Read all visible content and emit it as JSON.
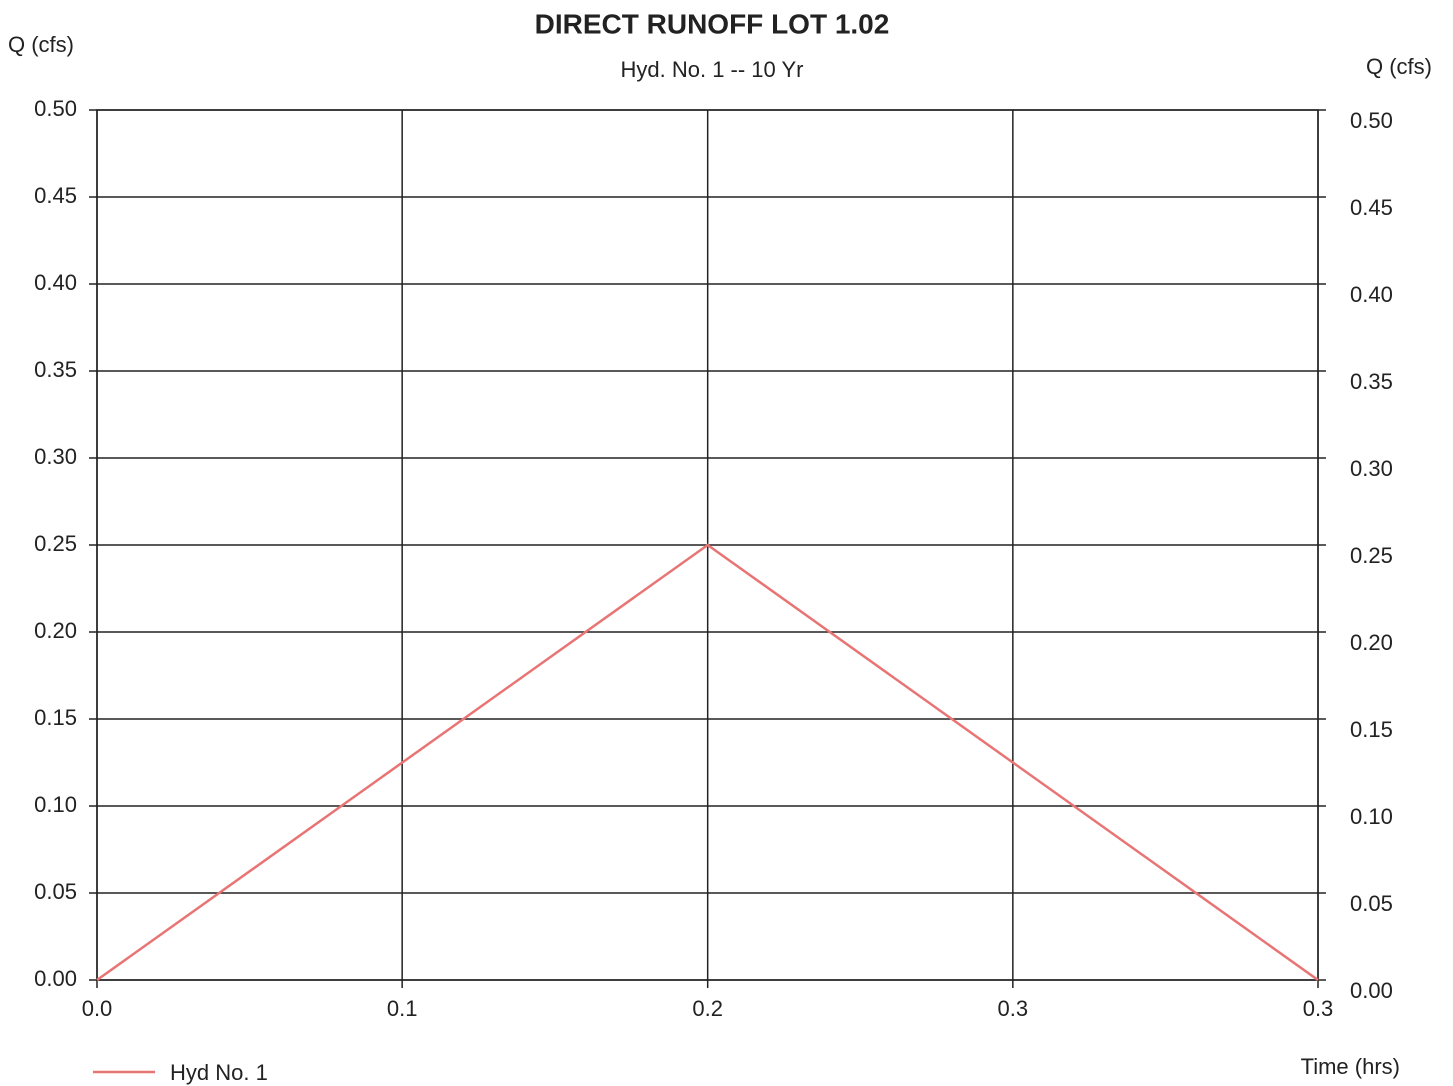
{
  "chart_data": {
    "type": "line",
    "title": "DIRECT RUNOFF LOT 1.02",
    "subtitle": "Hyd. No. 1 -- 10 Yr",
    "y_label": "Q (cfs)",
    "y2_label": "Q (cfs)",
    "x_label": "Time (hrs)",
    "x": [
      0,
      0.1667,
      0.3333
    ],
    "series": [
      {
        "name": "Hyd No. 1",
        "color": "#e87474",
        "values": [
          0,
          0.25,
          0
        ]
      }
    ],
    "xlim": [
      0,
      0.3333
    ],
    "xticks": [
      {
        "value": 0,
        "label": "0.0"
      },
      {
        "value": 0.0833,
        "label": "0.1"
      },
      {
        "value": 0.1667,
        "label": "0.2"
      },
      {
        "value": 0.25,
        "label": "0.3"
      },
      {
        "value": 0.3333,
        "label": "0.3"
      }
    ],
    "ylim": [
      0,
      0.5
    ],
    "yticks": [
      {
        "value": 0,
        "label": "0.00"
      },
      {
        "value": 0.05,
        "label": "0.05"
      },
      {
        "value": 0.1,
        "label": "0.10"
      },
      {
        "value": 0.15,
        "label": "0.15"
      },
      {
        "value": 0.2,
        "label": "0.20"
      },
      {
        "value": 0.25,
        "label": "0.25"
      },
      {
        "value": 0.3,
        "label": "0.30"
      },
      {
        "value": 0.35,
        "label": "0.35"
      },
      {
        "value": 0.4,
        "label": "0.40"
      },
      {
        "value": 0.45,
        "label": "0.45"
      },
      {
        "value": 0.5,
        "label": "0.50"
      }
    ],
    "y2lim": [
      0,
      0.5
    ],
    "y2ticks": [
      {
        "value": 0,
        "label": "0.00"
      },
      {
        "value": 0.05,
        "label": "0.05"
      },
      {
        "value": 0.1,
        "label": "0.10"
      },
      {
        "value": 0.15,
        "label": "0.15"
      },
      {
        "value": 0.2,
        "label": "0.20"
      },
      {
        "value": 0.25,
        "label": "0.25"
      },
      {
        "value": 0.3,
        "label": "0.30"
      },
      {
        "value": 0.35,
        "label": "0.35"
      },
      {
        "value": 0.4,
        "label": "0.40"
      },
      {
        "value": 0.45,
        "label": "0.45"
      },
      {
        "value": 0.5,
        "label": "0.50"
      }
    ],
    "grid": true,
    "legend": "bottom-left"
  }
}
